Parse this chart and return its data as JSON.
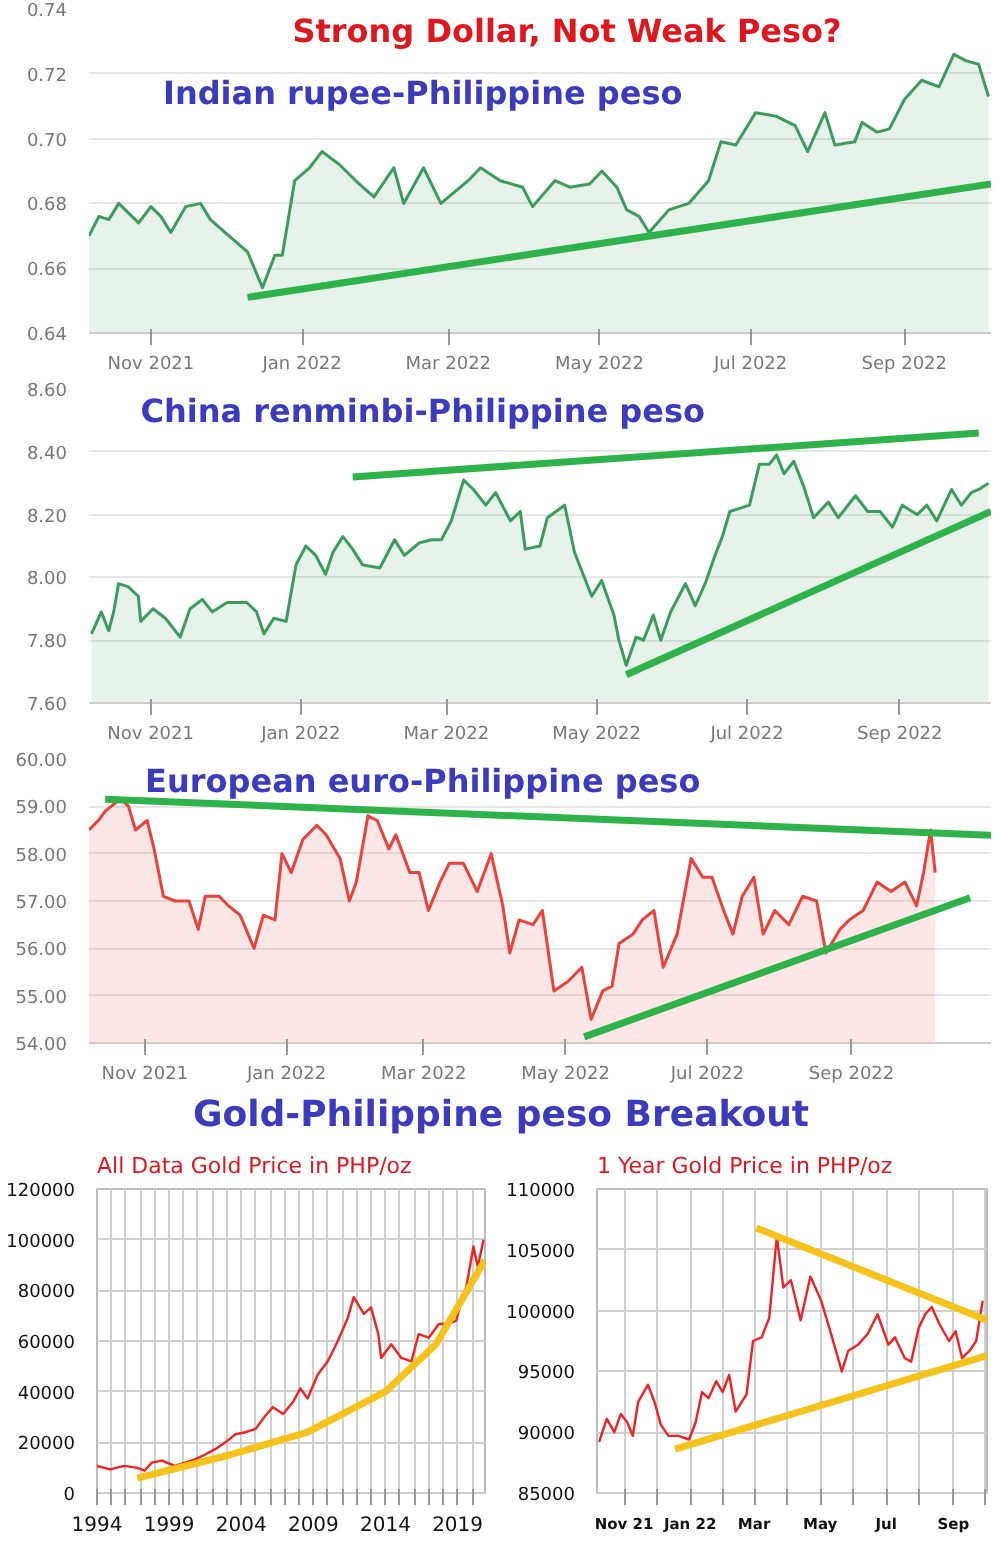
{
  "chart_data": [
    {
      "type": "area",
      "title": "Strong Dollar, Not Weak Peso?",
      "subtitle": "Indian rupee-Philippine peso",
      "xlim": [
        "2021-10-07",
        "2022-10-06"
      ],
      "xticks": [
        {
          "value": "2021-11-01",
          "label": "Nov 2021"
        },
        {
          "value": "2022-01-01",
          "label": "Jan 2022"
        },
        {
          "value": "2022-03-01",
          "label": "Mar 2022"
        },
        {
          "value": "2022-05-01",
          "label": "May 2022"
        },
        {
          "value": "2022-07-01",
          "label": "Jul 2022"
        },
        {
          "value": "2022-09-01",
          "label": "Sep 2022"
        }
      ],
      "ylim": [
        0.64,
        0.74
      ],
      "yticks": [
        {
          "value": 0.64,
          "label": "0.64"
        },
        {
          "value": 0.66,
          "label": "0.66"
        },
        {
          "value": 0.68,
          "label": "0.68"
        },
        {
          "value": 0.7,
          "label": "0.70"
        },
        {
          "value": 0.72,
          "label": "0.72"
        },
        {
          "value": 0.74,
          "label": "0.74"
        }
      ],
      "grid": "y",
      "series": [
        {
          "color": "#3a9d5a",
          "x": [
            "2021-10-07",
            "2021-10-11",
            "2021-10-15",
            "2021-10-19",
            "2021-10-23",
            "2021-10-27",
            "2021-11-01",
            "2021-11-05",
            "2021-11-09",
            "2021-11-15",
            "2021-11-21",
            "2021-11-25",
            "2021-12-04",
            "2021-12-10",
            "2021-12-16",
            "2021-12-21",
            "2021-12-24",
            "2021-12-29",
            "2022-01-04",
            "2022-01-09",
            "2022-01-16",
            "2022-01-24",
            "2022-01-30",
            "2022-02-07",
            "2022-02-11",
            "2022-02-19",
            "2022-02-26",
            "2022-03-09",
            "2022-03-14",
            "2022-03-22",
            "2022-03-31",
            "2022-04-04",
            "2022-04-13",
            "2022-04-19",
            "2022-04-27",
            "2022-05-02",
            "2022-05-08",
            "2022-05-12",
            "2022-05-17",
            "2022-05-21",
            "2022-05-29",
            "2022-06-06",
            "2022-06-14",
            "2022-06-19",
            "2022-06-25",
            "2022-07-03",
            "2022-07-11",
            "2022-07-19",
            "2022-07-24",
            "2022-07-31",
            "2022-08-04",
            "2022-08-12",
            "2022-08-15",
            "2022-08-21",
            "2022-08-26",
            "2022-09-01",
            "2022-09-08",
            "2022-09-15",
            "2022-09-21",
            "2022-09-26",
            "2022-10-01",
            "2022-10-05"
          ],
          "values": [
            0.67,
            0.676,
            0.675,
            0.68,
            0.677,
            0.674,
            0.679,
            0.676,
            0.671,
            0.679,
            0.68,
            0.675,
            0.669,
            0.665,
            0.654,
            0.664,
            0.664,
            0.687,
            0.691,
            0.696,
            0.692,
            0.686,
            0.682,
            0.691,
            0.68,
            0.691,
            0.68,
            0.687,
            0.691,
            0.687,
            0.685,
            0.679,
            0.687,
            0.685,
            0.686,
            0.69,
            0.685,
            0.678,
            0.676,
            0.671,
            0.678,
            0.68,
            0.687,
            0.699,
            0.698,
            0.708,
            0.707,
            0.704,
            0.696,
            0.708,
            0.698,
            0.699,
            0.705,
            0.702,
            0.703,
            0.712,
            0.718,
            0.716,
            0.726,
            0.724,
            0.723,
            0.713
          ]
        },
        {
          "type": "line",
          "color": "#2db34a",
          "x": [
            "2021-12-10",
            "2022-10-06"
          ],
          "values": [
            0.651,
            0.686
          ]
        }
      ]
    },
    {
      "type": "area",
      "title": "China renminbi-Philippine peso",
      "xlim": [
        "2021-10-07",
        "2022-10-08"
      ],
      "xticks": [
        {
          "value": "2021-11-01",
          "label": "Nov 2021"
        },
        {
          "value": "2022-01-01",
          "label": "Jan 2022"
        },
        {
          "value": "2022-03-01",
          "label": "Mar 2022"
        },
        {
          "value": "2022-05-01",
          "label": "May 2022"
        },
        {
          "value": "2022-07-01",
          "label": "Jul 2022"
        },
        {
          "value": "2022-09-01",
          "label": "Sep 2022"
        }
      ],
      "ylim": [
        7.6,
        8.6
      ],
      "yticks": [
        {
          "value": 7.6,
          "label": "7.60"
        },
        {
          "value": 7.8,
          "label": "7.80"
        },
        {
          "value": 8.0,
          "label": "8.00"
        },
        {
          "value": 8.2,
          "label": "8.20"
        },
        {
          "value": 8.4,
          "label": "8.40"
        },
        {
          "value": 8.6,
          "label": "8.60"
        }
      ],
      "grid": "y",
      "series": [
        {
          "color": "#3a9d5a",
          "x": [
            "2021-10-08",
            "2021-10-12",
            "2021-10-15",
            "2021-10-17",
            "2021-10-19",
            "2021-10-23",
            "2021-10-27",
            "2021-10-28",
            "2021-11-02",
            "2021-11-07",
            "2021-11-13",
            "2021-11-17",
            "2021-11-22",
            "2021-11-26",
            "2021-12-02",
            "2021-12-10",
            "2021-12-14",
            "2021-12-17",
            "2021-12-21",
            "2021-12-26",
            "2021-12-30",
            "2022-01-03",
            "2022-01-07",
            "2022-01-11",
            "2022-01-14",
            "2022-01-18",
            "2022-01-22",
            "2022-01-26",
            "2022-02-02",
            "2022-02-08",
            "2022-02-12",
            "2022-02-18",
            "2022-02-23",
            "2022-02-27",
            "2022-03-03",
            "2022-03-08",
            "2022-03-12",
            "2022-03-17",
            "2022-03-21",
            "2022-03-27",
            "2022-03-31",
            "2022-04-02",
            "2022-04-08",
            "2022-04-11",
            "2022-04-18",
            "2022-04-22",
            "2022-04-27",
            "2022-04-29",
            "2022-05-03",
            "2022-05-08",
            "2022-05-10",
            "2022-05-13",
            "2022-05-17",
            "2022-05-20",
            "2022-05-24",
            "2022-05-27",
            "2022-05-31",
            "2022-06-06",
            "2022-06-10",
            "2022-06-14",
            "2022-06-18",
            "2022-06-21",
            "2022-06-24",
            "2022-06-28",
            "2022-07-02",
            "2022-07-06",
            "2022-07-10",
            "2022-07-13",
            "2022-07-16",
            "2022-07-20",
            "2022-07-24",
            "2022-07-28",
            "2022-08-03",
            "2022-08-07",
            "2022-08-14",
            "2022-08-19",
            "2022-08-24",
            "2022-08-29",
            "2022-09-02",
            "2022-09-08",
            "2022-09-12",
            "2022-09-16",
            "2022-09-22",
            "2022-09-26",
            "2022-09-30",
            "2022-10-03",
            "2022-10-07"
          ],
          "values": [
            7.82,
            7.89,
            7.83,
            7.89,
            7.98,
            7.97,
            7.94,
            7.86,
            7.9,
            7.87,
            7.81,
            7.9,
            7.93,
            7.89,
            7.92,
            7.92,
            7.89,
            7.82,
            7.87,
            7.86,
            8.04,
            8.1,
            8.07,
            8.01,
            8.08,
            8.13,
            8.09,
            8.04,
            8.03,
            8.12,
            8.07,
            8.11,
            8.12,
            8.12,
            8.18,
            8.31,
            8.28,
            8.23,
            8.27,
            8.18,
            8.21,
            8.09,
            8.1,
            8.19,
            8.23,
            8.08,
            7.98,
            7.94,
            7.99,
            7.88,
            7.8,
            7.72,
            7.81,
            7.8,
            7.88,
            7.8,
            7.89,
            7.98,
            7.91,
            7.98,
            8.07,
            8.13,
            8.21,
            8.22,
            8.23,
            8.36,
            8.36,
            8.39,
            8.33,
            8.37,
            8.29,
            8.19,
            8.24,
            8.19,
            8.26,
            8.21,
            8.21,
            8.16,
            8.23,
            8.2,
            8.23,
            8.18,
            8.28,
            8.23,
            8.27,
            8.28,
            8.3
          ]
        },
        {
          "type": "line",
          "color": "#2db34a",
          "x": [
            "2022-01-22",
            "2022-10-03"
          ],
          "values": [
            8.32,
            8.46
          ]
        },
        {
          "type": "line",
          "color": "#2db34a",
          "x": [
            "2022-05-13",
            "2022-10-08"
          ],
          "values": [
            7.69,
            8.21
          ]
        }
      ]
    },
    {
      "type": "area",
      "title": "European euro-Philippine peso",
      "xlim": [
        "2021-10-08",
        "2022-10-31"
      ],
      "xticks": [
        {
          "value": "2021-11-01",
          "label": "Nov 2021"
        },
        {
          "value": "2022-01-01",
          "label": "Jan 2022"
        },
        {
          "value": "2022-03-01",
          "label": "Mar 2022"
        },
        {
          "value": "2022-05-01",
          "label": "May 2022"
        },
        {
          "value": "2022-07-01",
          "label": "Jul 2022"
        },
        {
          "value": "2022-09-01",
          "label": "Sep 2022"
        }
      ],
      "ylim": [
        54,
        60
      ],
      "yticks": [
        {
          "value": 54,
          "label": "54.00"
        },
        {
          "value": 55,
          "label": "55.00"
        },
        {
          "value": 56,
          "label": "56.00"
        },
        {
          "value": 57,
          "label": "57.00"
        },
        {
          "value": 58,
          "label": "58.00"
        },
        {
          "value": 59,
          "label": "59.00"
        },
        {
          "value": 60,
          "label": "60.00"
        }
      ],
      "grid": "y",
      "series": [
        {
          "color": "#e8423a",
          "x": [
            "2021-10-08",
            "2021-10-12",
            "2021-10-15",
            "2021-10-20",
            "2021-10-23",
            "2021-10-25",
            "2021-10-28",
            "2021-11-02",
            "2021-11-05",
            "2021-11-09",
            "2021-11-14",
            "2021-11-20",
            "2021-11-24",
            "2021-11-27",
            "2021-12-03",
            "2021-12-07",
            "2021-12-12",
            "2021-12-18",
            "2021-12-22",
            "2021-12-27",
            "2021-12-30",
            "2022-01-03",
            "2022-01-08",
            "2022-01-14",
            "2022-01-18",
            "2022-01-24",
            "2022-01-28",
            "2022-01-31",
            "2022-02-05",
            "2022-02-09",
            "2022-02-14",
            "2022-02-17",
            "2022-02-23",
            "2022-02-27",
            "2022-03-03",
            "2022-03-08",
            "2022-03-12",
            "2022-03-18",
            "2022-03-24",
            "2022-03-30",
            "2022-04-04",
            "2022-04-07",
            "2022-04-11",
            "2022-04-17",
            "2022-04-21",
            "2022-04-26",
            "2022-05-02",
            "2022-05-08",
            "2022-05-12",
            "2022-05-17",
            "2022-05-21",
            "2022-05-24",
            "2022-05-30",
            "2022-06-03",
            "2022-06-08",
            "2022-06-12",
            "2022-06-18",
            "2022-06-24",
            "2022-06-29",
            "2022-07-03",
            "2022-07-08",
            "2022-07-12",
            "2022-07-16",
            "2022-07-21",
            "2022-07-25",
            "2022-07-30",
            "2022-08-05",
            "2022-08-11",
            "2022-08-17",
            "2022-08-21",
            "2022-08-27",
            "2022-08-31",
            "2022-09-06",
            "2022-09-12",
            "2022-09-18",
            "2022-09-24",
            "2022-09-29",
            "2022-10-02",
            "2022-10-05",
            "2022-10-07"
          ],
          "values": [
            58.5,
            58.7,
            58.9,
            59.1,
            59.1,
            59.0,
            58.5,
            58.7,
            58.1,
            57.1,
            57.0,
            57.0,
            56.4,
            57.1,
            57.1,
            56.9,
            56.7,
            56.0,
            56.7,
            56.6,
            58.0,
            57.6,
            58.3,
            58.6,
            58.4,
            57.9,
            57.0,
            57.4,
            58.8,
            58.7,
            58.1,
            58.4,
            57.6,
            57.6,
            56.8,
            57.4,
            57.8,
            57.8,
            57.2,
            58.0,
            56.9,
            55.9,
            56.6,
            56.5,
            56.8,
            55.1,
            55.3,
            55.6,
            54.5,
            55.1,
            55.2,
            56.1,
            56.3,
            56.6,
            56.8,
            55.6,
            56.3,
            57.9,
            57.5,
            57.5,
            56.8,
            56.3,
            57.1,
            57.5,
            56.3,
            56.8,
            56.5,
            57.1,
            57.0,
            55.9,
            56.4,
            56.6,
            56.8,
            57.4,
            57.2,
            57.4,
            56.9,
            57.6,
            58.5,
            57.6
          ]
        },
        {
          "type": "line",
          "color": "#2db34a",
          "x": [
            "2021-10-15",
            "2022-10-31"
          ],
          "values": [
            59.15,
            58.39
          ]
        },
        {
          "type": "line",
          "color": "#2db34a",
          "x": [
            "2022-05-09",
            "2022-10-22"
          ],
          "values": [
            54.13,
            57.07
          ]
        }
      ]
    },
    {
      "type": "line",
      "title": "Gold-Philippine peso Breakout",
      "subtitle": "All Data Gold Price in PHP/oz",
      "xlim": [
        1994,
        2020.9
      ],
      "xticks": [
        1994,
        {
          "value": 1995,
          "label": null
        },
        {
          "value": 1996,
          "label": null
        },
        {
          "value": 1997,
          "label": null
        },
        {
          "value": 1998,
          "label": null
        },
        1999,
        {
          "value": 2000,
          "label": null
        },
        {
          "value": 2001,
          "label": null
        },
        {
          "value": 2002,
          "label": null
        },
        {
          "value": 2003,
          "label": null
        },
        2004,
        {
          "value": 2005,
          "label": null
        },
        {
          "value": 2006,
          "label": null
        },
        {
          "value": 2007,
          "label": null
        },
        {
          "value": 2008,
          "label": null
        },
        2009,
        {
          "value": 2010,
          "label": null
        },
        {
          "value": 2011,
          "label": null
        },
        {
          "value": 2012,
          "label": null
        },
        {
          "value": 2013,
          "label": null
        },
        2014,
        {
          "value": 2015,
          "label": null
        },
        {
          "value": 2016,
          "label": null
        },
        {
          "value": 2017,
          "label": null
        },
        {
          "value": 2018,
          "label": null
        },
        2019,
        {
          "value": 2020,
          "label": null
        }
      ],
      "ylim": [
        0,
        120000
      ],
      "yticks": [
        0,
        20000,
        40000,
        60000,
        80000,
        100000,
        120000
      ],
      "grid": true,
      "series": [
        {
          "color": "#ee2222",
          "x": [
            1994.0,
            1994.9,
            1995.9,
            1996.8,
            1997.3,
            1997.8,
            1998.5,
            1999.4,
            2000.1,
            2000.8,
            2001.5,
            2002.2,
            2002.9,
            2003.6,
            2004.3,
            2005.0,
            2005.7,
            2006.2,
            2006.9,
            2007.6,
            2008.1,
            2008.6,
            2009.3,
            2010.0,
            2010.7,
            2011.4,
            2011.8,
            2012.5,
            2013.0,
            2013.5,
            2013.7,
            2014.4,
            2015.1,
            2015.8,
            2016.3,
            2017.0,
            2017.7,
            2018.4,
            2018.9,
            2019.4,
            2019.6,
            2020.1,
            2020.4,
            2020.8
          ],
          "values": [
            10700,
            9300,
            10700,
            9900,
            8800,
            12000,
            12800,
            10700,
            12000,
            13300,
            15200,
            17300,
            20000,
            23200,
            24000,
            25300,
            30700,
            33900,
            31200,
            36000,
            41300,
            37300,
            46700,
            52000,
            60000,
            69300,
            77300,
            70700,
            73300,
            62700,
            53300,
            58700,
            53300,
            52000,
            62700,
            61300,
            66700,
            66700,
            68000,
            78700,
            81300,
            97300,
            89300,
            100000
          ]
        },
        {
          "type": "line",
          "color": "#f7c21a",
          "x": [
            1996.8,
            2003.0,
            2008.6,
            2014.0,
            2017.5,
            2020.9
          ],
          "values": [
            5900,
            14700,
            24000,
            40000,
            58700,
            92000
          ]
        }
      ]
    },
    {
      "type": "line",
      "subtitle": "1 Year Gold Price in PHP/oz",
      "xlim": [
        "2021-10-07",
        "2022-10-02"
      ],
      "xticks": [
        {
          "value": "2021-11-01",
          "label": "Nov 21"
        },
        {
          "value": "2021-12-01",
          "label": null
        },
        {
          "value": "2022-01-01",
          "label": "Jan 22"
        },
        {
          "value": "2022-02-01",
          "label": null
        },
        {
          "value": "2022-03-01",
          "label": "Mar"
        },
        {
          "value": "2022-04-01",
          "label": null
        },
        {
          "value": "2022-05-01",
          "label": "May"
        },
        {
          "value": "2022-06-01",
          "label": null
        },
        {
          "value": "2022-07-01",
          "label": "Jul"
        },
        {
          "value": "2022-08-01",
          "label": null
        },
        {
          "value": "2022-09-01",
          "label": "Sep"
        },
        {
          "value": "2022-10-01",
          "label": null
        }
      ],
      "ylim": [
        85000,
        110000
      ],
      "yticks": [
        85000,
        90000,
        95000,
        100000,
        105000,
        110000
      ],
      "grid": true,
      "series": [
        {
          "color": "#ee2222",
          "x": [
            "2021-10-09",
            "2021-10-16",
            "2021-10-23",
            "2021-10-29",
            "2021-11-04",
            "2021-11-09",
            "2021-11-14",
            "2021-11-23",
            "2021-11-29",
            "2021-12-05",
            "2021-12-12",
            "2021-12-21",
            "2021-12-31",
            "2022-01-06",
            "2022-01-12",
            "2022-01-18",
            "2022-01-25",
            "2022-01-31",
            "2022-02-06",
            "2022-02-12",
            "2022-02-22",
            "2022-02-28",
            "2022-03-08",
            "2022-03-15",
            "2022-03-22",
            "2022-03-28",
            "2022-04-04",
            "2022-04-13",
            "2022-04-22",
            "2022-05-02",
            "2022-05-11",
            "2022-05-21",
            "2022-05-27",
            "2022-06-05",
            "2022-06-14",
            "2022-06-23",
            "2022-07-03",
            "2022-07-09",
            "2022-07-18",
            "2022-07-24",
            "2022-07-31",
            "2022-08-06",
            "2022-08-12",
            "2022-08-19",
            "2022-08-28",
            "2022-09-03",
            "2022-09-09",
            "2022-09-16",
            "2022-09-22",
            "2022-09-28"
          ],
          "values": [
            89200,
            91100,
            90000,
            91500,
            90800,
            89700,
            92500,
            93900,
            92500,
            90600,
            89700,
            89700,
            89400,
            90800,
            93300,
            92800,
            94200,
            93300,
            94700,
            91700,
            93100,
            97500,
            97800,
            99400,
            106100,
            101900,
            102500,
            99200,
            102800,
            100800,
            98100,
            95000,
            96700,
            97200,
            98100,
            99700,
            97200,
            97800,
            96100,
            95800,
            98600,
            99700,
            100300,
            98900,
            97500,
            98300,
            96100,
            96700,
            97500,
            100800
          ]
        },
        {
          "type": "line",
          "color": "#f7c21a",
          "x": [
            "2022-03-03",
            "2022-10-02"
          ],
          "values": [
            106800,
            99200
          ]
        },
        {
          "type": "line",
          "color": "#f7c21a",
          "x": [
            "2021-12-18",
            "2022-10-02"
          ],
          "values": [
            88600,
            96300
          ]
        }
      ]
    }
  ]
}
